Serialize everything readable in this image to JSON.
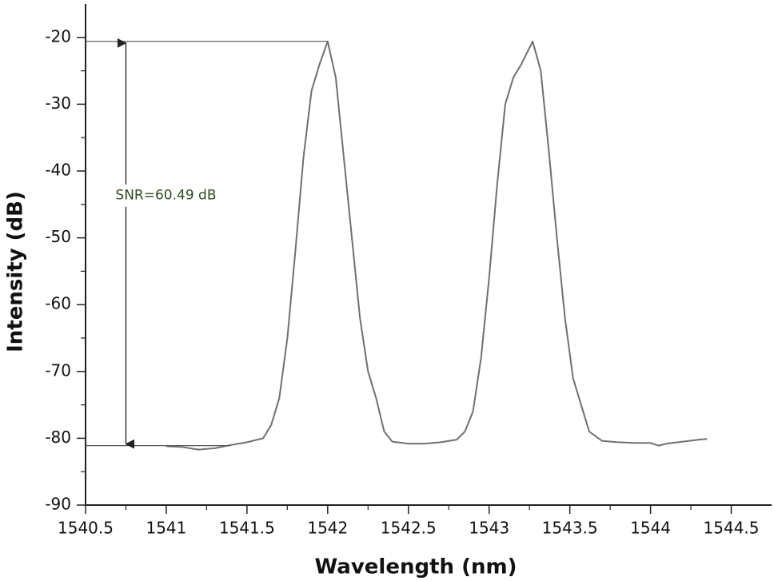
{
  "chart_data": {
    "type": "line",
    "x_label": "Wavelength (nm)",
    "y_label": "Intensity (dB)",
    "xlim": [
      1540.5,
      1544.75
    ],
    "ylim": [
      -90,
      -15
    ],
    "xticks": [
      1540.5,
      1541,
      1541.5,
      1542,
      1542.5,
      1543,
      1543.5,
      1544,
      1544.5
    ],
    "yticks": [
      -90,
      -80,
      -70,
      -60,
      -50,
      -40,
      -30,
      -20
    ],
    "series": [
      {
        "color": "#707070",
        "x": [
          1541.0,
          1541.1,
          1541.2,
          1541.3,
          1541.4,
          1541.5,
          1541.6,
          1541.65,
          1541.7,
          1541.75,
          1541.8,
          1541.85,
          1541.9,
          1541.95,
          1542.0,
          1542.05,
          1542.1,
          1542.15,
          1542.2,
          1542.25,
          1542.3,
          1542.35,
          1542.4,
          1542.5,
          1542.6,
          1542.7,
          1542.8,
          1542.85,
          1542.9,
          1542.95,
          1543.0,
          1543.05,
          1543.1,
          1543.15,
          1543.2,
          1543.27,
          1543.32,
          1543.37,
          1543.42,
          1543.47,
          1543.52,
          1543.57,
          1543.62,
          1543.7,
          1543.8,
          1543.9,
          1544.0,
          1544.05,
          1544.1,
          1544.2,
          1544.3,
          1544.35
        ],
        "values": [
          -81.2,
          -81.3,
          -81.7,
          -81.5,
          -81.0,
          -80.6,
          -80.0,
          -78,
          -74,
          -65,
          -52,
          -38,
          -28,
          -24,
          -20.6,
          -26,
          -38,
          -50,
          -62,
          -70,
          -74,
          -79,
          -80.5,
          -80.8,
          -80.8,
          -80.6,
          -80.2,
          -79,
          -76,
          -68,
          -56,
          -42,
          -30,
          -26,
          -24,
          -20.6,
          -25,
          -37,
          -50,
          -62,
          -71,
          -75,
          -79,
          -80.4,
          -80.6,
          -80.7,
          -80.7,
          -81.1,
          -80.8,
          -80.5,
          -80.2,
          -80.1
        ]
      }
    ],
    "annotation": {
      "text": "SNR=60.49 dB",
      "x": 1540.75,
      "top": -20.6,
      "bottom": -81.1,
      "top_end": 1542.0,
      "bottom_end": 1541.4
    }
  }
}
